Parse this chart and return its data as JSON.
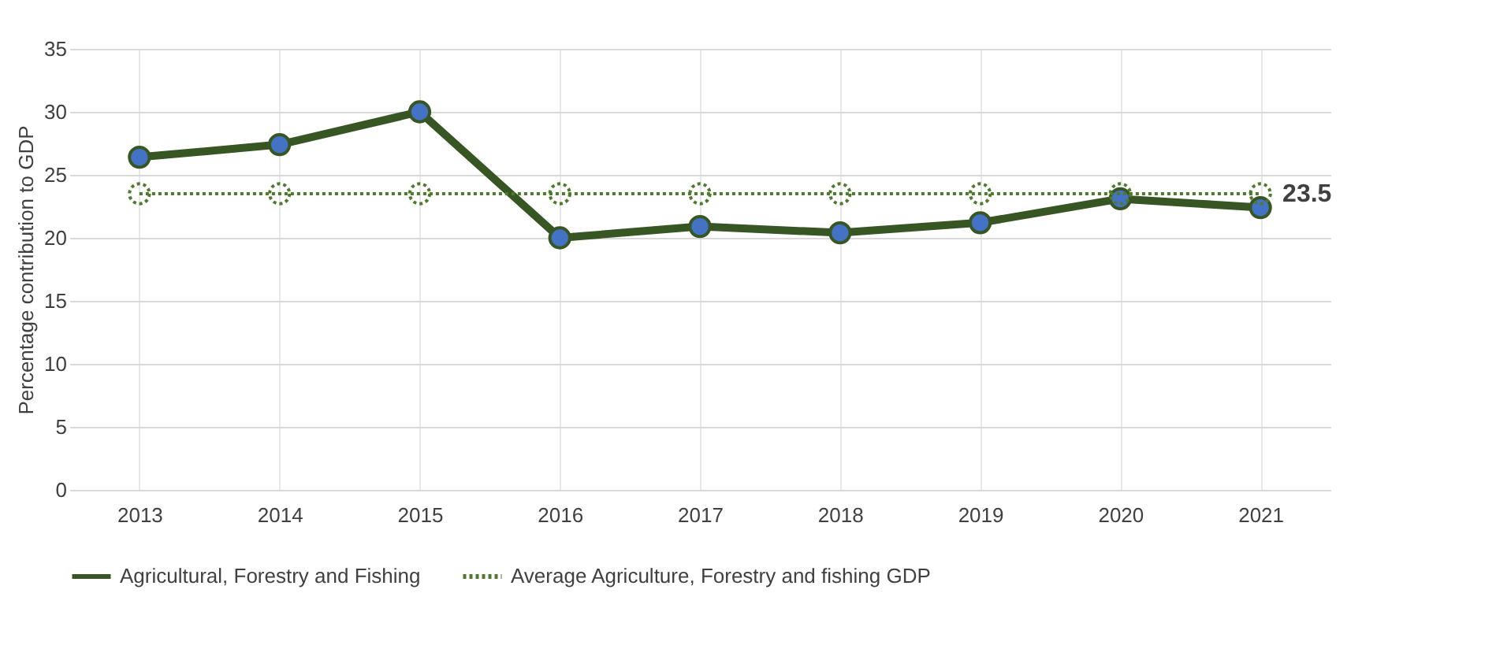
{
  "chart_data": {
    "type": "line",
    "ylabel": "Percentage contribution to GDP",
    "categories": [
      "2013",
      "2014",
      "2015",
      "2016",
      "2017",
      "2018",
      "2019",
      "2020",
      "2021"
    ],
    "series": [
      {
        "name": "Agricultural, Forestry and Fishing",
        "color": "#375623",
        "line_style": "solid",
        "values": [
          26.4,
          27.4,
          30.0,
          20.0,
          20.9,
          20.4,
          21.2,
          23.1,
          22.4
        ]
      },
      {
        "name": "Average Agriculture, Forestry and fishing GDP",
        "color": "#4e7a2e",
        "line_style": "dotted",
        "values": [
          23.5,
          23.5,
          23.5,
          23.5,
          23.5,
          23.5,
          23.5,
          23.5,
          23.5
        ],
        "value_labels": [
          null,
          null,
          null,
          null,
          null,
          null,
          null,
          null,
          "23.5"
        ]
      }
    ],
    "ylim": [
      0,
      35
    ],
    "yticks": [
      0,
      5,
      10,
      15,
      20,
      25,
      30,
      35
    ],
    "grid": true,
    "legend": "bottom",
    "marker": "circle"
  }
}
